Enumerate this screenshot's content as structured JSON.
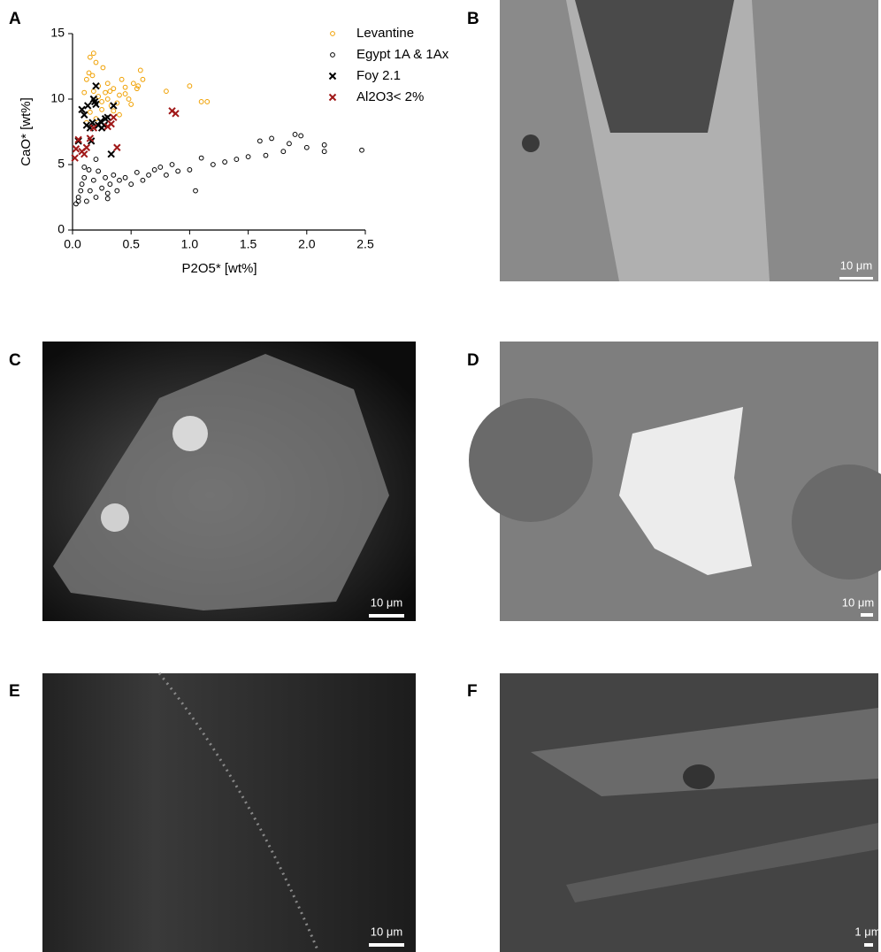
{
  "chart_data": {
    "type": "scatter",
    "x_label": "P2O5* [wt%]",
    "y_label": "CaO* [wt%]",
    "xlim": [
      0,
      2.5
    ],
    "ylim": [
      0,
      15
    ],
    "xticks": [
      {
        "value": 0,
        "label": "0.0"
      },
      0.5,
      {
        "value": 1,
        "label": "1.0"
      },
      1.5,
      {
        "value": 2,
        "label": "2.0"
      },
      2.5
    ],
    "yticks": [
      0,
      5,
      10,
      15
    ],
    "grid": false,
    "legend": "top-right",
    "series": [
      {
        "name": "Levantine",
        "color": "#f0a000",
        "marker": "circle",
        "x": [
          0.1,
          0.12,
          0.15,
          0.18,
          0.2,
          0.22,
          0.25,
          0.28,
          0.3,
          0.33,
          0.35,
          0.38,
          0.4,
          0.42,
          0.45,
          0.48,
          0.5,
          0.55,
          0.58,
          0.6,
          0.15,
          0.2,
          0.25,
          0.3,
          0.12,
          0.18,
          0.22,
          0.35,
          0.45,
          0.52,
          0.8,
          1.0,
          1.1,
          1.15,
          0.14,
          0.17,
          0.26,
          0.32,
          0.4,
          0.56
        ],
        "values": [
          10.5,
          11.5,
          13.2,
          13.5,
          12.8,
          10.2,
          9.8,
          10.5,
          11.2,
          9.5,
          10.8,
          9.7,
          10.3,
          11.5,
          10.9,
          10,
          9.6,
          10.8,
          12.2,
          11.5,
          9,
          8.5,
          9.2,
          10,
          8.2,
          10.6,
          11,
          9.1,
          10.4,
          11.2,
          10.6,
          11,
          9.8,
          9.8,
          12,
          11.8,
          12.4,
          10.6,
          8.8,
          11
        ]
      },
      {
        "name": "Egypt 1A & 1Ax",
        "color": "#000000",
        "marker": "circle",
        "x": [
          0.03,
          0.05,
          0.07,
          0.08,
          0.1,
          0.12,
          0.14,
          0.15,
          0.18,
          0.2,
          0.22,
          0.25,
          0.28,
          0.3,
          0.32,
          0.35,
          0.38,
          0.4,
          0.45,
          0.5,
          0.55,
          0.6,
          0.65,
          0.7,
          0.75,
          0.8,
          0.85,
          0.9,
          1.0,
          1.05,
          1.1,
          1.2,
          1.3,
          1.4,
          1.5,
          1.6,
          1.65,
          1.7,
          1.8,
          1.85,
          1.9,
          1.95,
          2.0,
          2.15,
          2.15,
          2.47,
          0.1,
          0.2,
          0.3,
          0.05
        ],
        "values": [
          2,
          2.5,
          3,
          3.5,
          4,
          2.2,
          4.6,
          3,
          3.8,
          2.5,
          4.5,
          3.2,
          4,
          2.8,
          3.5,
          4.2,
          3,
          3.8,
          4,
          3.5,
          4.4,
          3.8,
          4.2,
          4.6,
          4.8,
          4.2,
          5,
          4.5,
          4.6,
          3,
          5.5,
          5,
          5.2,
          5.4,
          5.6,
          6.8,
          5.7,
          7,
          6,
          6.6,
          7.3,
          7.2,
          6.3,
          6.5,
          6,
          6.1,
          4.8,
          5.4,
          2.4,
          2.2
        ]
      },
      {
        "name": "Foy 2.1",
        "color": "#000000",
        "marker": "cross",
        "x": [
          0.05,
          0.08,
          0.1,
          0.12,
          0.13,
          0.15,
          0.17,
          0.18,
          0.2,
          0.2,
          0.22,
          0.24,
          0.25,
          0.27,
          0.3,
          0.33,
          0.35,
          0.16,
          0.19,
          0.28
        ],
        "values": [
          6.8,
          9.2,
          8.8,
          8,
          9.5,
          7.8,
          8.2,
          10,
          11,
          9.6,
          8,
          8.3,
          7.8,
          8,
          8.6,
          5.8,
          9.5,
          6.8,
          9.8,
          8.5
        ]
      },
      {
        "name": "Al2O3< 2%",
        "color": "#a01818",
        "marker": "cross",
        "x": [
          0.02,
          0.03,
          0.05,
          0.08,
          0.12,
          0.15,
          0.18,
          0.3,
          0.33,
          0.35,
          0.38,
          0.85,
          0.88,
          0.1
        ],
        "values": [
          5.5,
          6.2,
          6.9,
          6,
          6.3,
          7,
          7.8,
          7.9,
          8.1,
          8.6,
          6.3,
          9.1,
          8.9,
          5.8
        ]
      }
    ]
  },
  "panels": [
    {
      "letter": "A"
    },
    {
      "letter": "B",
      "scale_bar": "10 μm"
    },
    {
      "letter": "C",
      "scale_bar": "10 μm"
    },
    {
      "letter": "D",
      "scale_bar": "10 μm"
    },
    {
      "letter": "E",
      "scale_bar": "10 μm"
    },
    {
      "letter": "F",
      "scale_bar": "1 μm"
    }
  ]
}
